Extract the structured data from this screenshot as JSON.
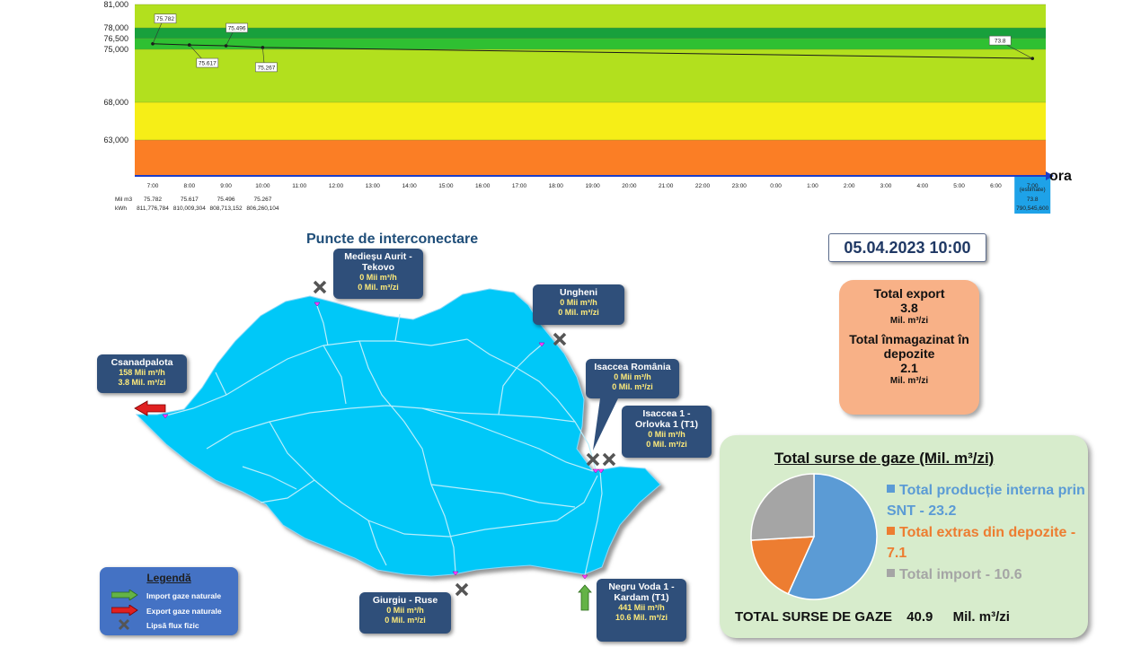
{
  "chart_data": {
    "type": "line",
    "x": [
      "7:00",
      "8:00",
      "9:00",
      "10:00",
      "11:00",
      "12:00",
      "13:00",
      "14:00",
      "15:00",
      "16:00",
      "17:00",
      "18:00",
      "19:00",
      "20:00",
      "21:00",
      "22:00",
      "23:00",
      "0:00",
      "1:00",
      "2:00",
      "3:00",
      "4:00",
      "5:00",
      "6:00",
      "7:00"
    ],
    "series": [
      {
        "values": [
          75.782,
          75.617,
          75.496,
          75.267,
          null,
          null,
          null,
          null,
          null,
          null,
          null,
          null,
          null,
          null,
          null,
          null,
          null,
          null,
          null,
          null,
          null,
          null,
          null,
          null,
          73.8
        ]
      }
    ],
    "y_ticks": [
      "63,000",
      "68,000",
      "75,000",
      "76,500",
      "78,000",
      "81,000"
    ],
    "ylim": [
      58,
      81
    ],
    "bands": [
      {
        "from": 58,
        "to": 63,
        "color": "#fb7e25"
      },
      {
        "from": 63,
        "to": 68,
        "color": "#f6ee17"
      },
      {
        "from": 68,
        "to": 75,
        "color": "#b2e01e"
      },
      {
        "from": 75,
        "to": 76.5,
        "color": "#2fc032"
      },
      {
        "from": 76.5,
        "to": 78,
        "color": "#18a03c"
      },
      {
        "from": 78,
        "to": 81,
        "color": "#b2e01e"
      }
    ],
    "point_labels": [
      "75.782",
      "75.617",
      "75.496",
      "75.267",
      "73.8"
    ],
    "x_axis_label": "ora",
    "last_column_note": "(estimate)",
    "table_rows": [
      {
        "label": "Mil m3",
        "values": [
          "75.782",
          "75.617",
          "75.496",
          "75.267"
        ],
        "last": "73.8"
      },
      {
        "label": "kWh",
        "values": [
          "811,776,784",
          "810,009,304",
          "808,713,152",
          "806,260,104"
        ],
        "last": "790,545,600"
      }
    ]
  },
  "map": {
    "title": "Puncte de interconectare",
    "points": [
      {
        "name": "Medieșu Aurit - Tekovo",
        "line1": "0 Mii  m³/h",
        "line2": "0 Mil. m³/zi"
      },
      {
        "name": "Ungheni",
        "line1": "0 Mii  m³/h",
        "line2": "0 Mil. m³/zi"
      },
      {
        "name": "Csanadpalota",
        "line1": "158 Mii  m³/h",
        "line2": "3.8 Mil. m³/zi"
      },
      {
        "name": "Isaccea România",
        "line1": "0 Mii  m³/h",
        "line2": "0 Mil. m³/zi"
      },
      {
        "name": "Isaccea 1 - Orlovka 1 (T1)",
        "line1": "0 Mii  m³/h",
        "line2": "0 Mil. m³/zi"
      },
      {
        "name": "Giurgiu - Ruse",
        "line1": "0 Mii  m³/h",
        "line2": "0 Mil. m³/zi"
      },
      {
        "name": "Negru Voda 1 - Kardam (T1)",
        "line1": "441 Mii  m³/h",
        "line2": "10.6 Mil. m³/zi"
      }
    ],
    "legend": {
      "title": "Legendă",
      "items": [
        "Import gaze naturale",
        "Export gaze naturale",
        "Lipsă flux fizic"
      ]
    }
  },
  "datetime": "05.04.2023 10:00",
  "export_panel": {
    "export_title": "Total export",
    "export_value": "3.8",
    "export_unit": "Mil. m³/zi",
    "storage_title": "Total înmagazinat în depozite",
    "storage_value": "2.1",
    "storage_unit": "Mil. m³/zi"
  },
  "sources": {
    "title": "Total surse de gaze  (Mil. m³/zi)",
    "pie": [
      {
        "label": "Total producție interna prin SNT - 23.2",
        "value": 23.2,
        "color": "#5b9bd5"
      },
      {
        "label": "Total extras din depozite - 7.1",
        "value": 7.1,
        "color": "#ed7d31"
      },
      {
        "label": "Total import - 10.6",
        "value": 10.6,
        "color": "#a5a5a5"
      }
    ],
    "total_label": "TOTAL SURSE DE GAZE",
    "total_value": "40.9",
    "total_unit": "Mil. m³/zi"
  }
}
